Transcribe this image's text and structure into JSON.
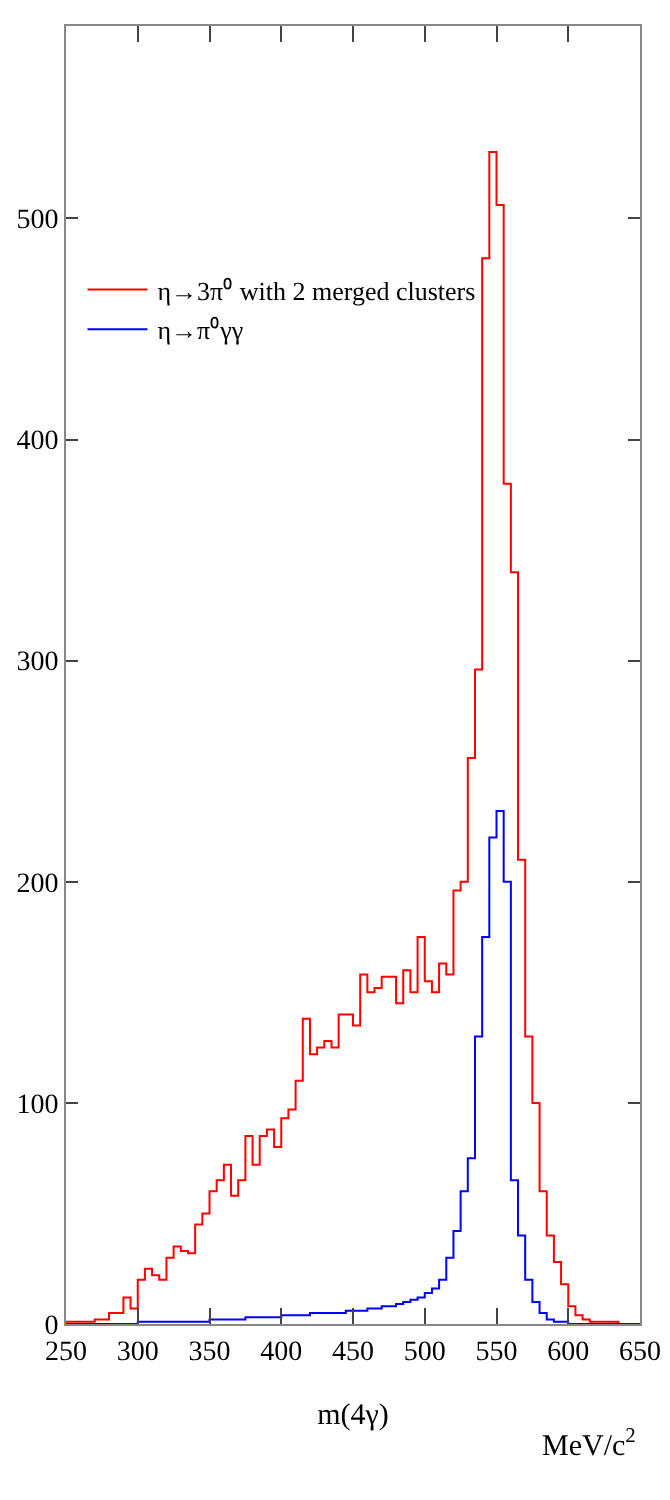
{
  "chart_data": {
    "type": "histogram",
    "xlabel": "m(4γ)",
    "annotations": [
      "MeV/c$^{2}$"
    ],
    "bins": [
      250,
      255,
      260,
      265,
      270,
      275,
      280,
      285,
      290,
      295,
      300,
      305,
      310,
      315,
      320,
      325,
      330,
      335,
      340,
      345,
      350,
      355,
      360,
      365,
      370,
      375,
      380,
      385,
      390,
      395,
      400,
      405,
      410,
      415,
      420,
      425,
      430,
      435,
      440,
      445,
      450,
      455,
      460,
      465,
      470,
      475,
      480,
      485,
      490,
      495,
      500,
      505,
      510,
      515,
      520,
      525,
      530,
      535,
      540,
      545,
      550,
      555,
      560,
      565,
      570,
      575,
      580,
      585,
      590,
      595,
      600,
      605,
      610,
      615,
      620,
      625,
      630,
      635,
      640,
      645,
      650
    ],
    "series": [
      {
        "name": "η→3π⁰ with 2 merged clusters",
        "color": "#ff0000",
        "values": [
          1,
          1,
          1,
          1,
          2,
          2,
          5,
          5,
          12,
          7,
          20,
          25,
          22,
          20,
          30,
          35,
          33,
          32,
          45,
          50,
          60,
          65,
          72,
          58,
          65,
          85,
          72,
          85,
          88,
          80,
          93,
          97,
          110,
          138,
          122,
          125,
          128,
          125,
          140,
          140,
          135,
          158,
          150,
          152,
          157,
          157,
          145,
          160,
          150,
          175,
          155,
          150,
          163,
          158,
          196,
          200,
          256,
          296,
          482,
          530,
          506,
          380,
          340,
          210,
          130,
          100,
          60,
          40,
          28,
          18,
          8,
          4,
          2,
          1,
          1,
          1,
          1,
          0,
          0,
          0
        ]
      },
      {
        "name": "η→π⁰γγ",
        "color": "#0000ff",
        "values": [
          0,
          0,
          0,
          0,
          0,
          0,
          0,
          0,
          0,
          0,
          1,
          1,
          1,
          1,
          1,
          1,
          1,
          1,
          1,
          1,
          2,
          2,
          2,
          2,
          2,
          3,
          3,
          3,
          3,
          3,
          4,
          4,
          4,
          4,
          5,
          5,
          5,
          5,
          5,
          6,
          6,
          6,
          7,
          7,
          8,
          8,
          9,
          10,
          11,
          12,
          14,
          16,
          20,
          30,
          42,
          60,
          75,
          130,
          175,
          220,
          232,
          200,
          65,
          40,
          20,
          10,
          5,
          2,
          1,
          1,
          0,
          0,
          0,
          0,
          0,
          0,
          0,
          0,
          0,
          0
        ]
      }
    ],
    "xlim": [
      250,
      650
    ],
    "xticks": [
      250,
      300,
      350,
      400,
      450,
      500,
      550,
      600,
      650
    ],
    "ylim": [
      0,
      587
    ],
    "yticks": [
      0,
      100,
      200,
      300,
      400,
      500
    ],
    "grid": false,
    "legend": "top left"
  }
}
